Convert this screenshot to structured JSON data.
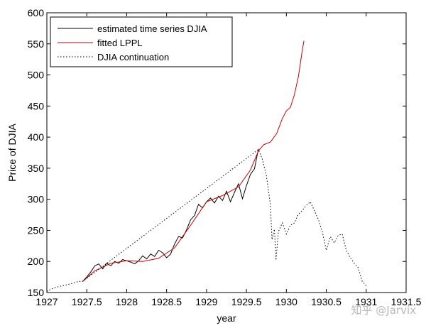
{
  "chart_data": {
    "type": "line",
    "title": "",
    "xlabel": "year",
    "ylabel": "Price of DJIA",
    "xlim": [
      1927,
      1931.5
    ],
    "ylim": [
      150,
      600
    ],
    "xticks": [
      1927,
      1927.5,
      1928,
      1928.5,
      1929,
      1929.5,
      1930,
      1930.5,
      1931,
      1931.5
    ],
    "xtick_labels": [
      "1927",
      "1927.5",
      "1928",
      "1928.5",
      "1929",
      "1929.5",
      "1930",
      "1930.5",
      "1931",
      "1931.5"
    ],
    "yticks": [
      150,
      200,
      250,
      300,
      350,
      400,
      450,
      500,
      550,
      600
    ],
    "ytick_labels": [
      "150",
      "200",
      "250",
      "300",
      "350",
      "400",
      "450",
      "500",
      "550",
      "600"
    ],
    "legend_position": "top-left",
    "series": [
      {
        "name": "estimated time series DJIA",
        "color": "#000000",
        "style": "solid",
        "x": [
          1927.45,
          1927.5,
          1927.55,
          1927.6,
          1927.65,
          1927.7,
          1927.75,
          1927.8,
          1927.85,
          1927.9,
          1927.95,
          1928.0,
          1928.05,
          1928.1,
          1928.15,
          1928.2,
          1928.25,
          1928.3,
          1928.35,
          1928.4,
          1928.45,
          1928.5,
          1928.55,
          1928.6,
          1928.65,
          1928.7,
          1928.75,
          1928.8,
          1928.85,
          1928.9,
          1928.95,
          1929.0,
          1929.05,
          1929.1,
          1929.15,
          1929.2,
          1929.25,
          1929.3,
          1929.35,
          1929.4,
          1929.45,
          1929.5,
          1929.55,
          1929.6,
          1929.65
        ],
        "values": [
          168,
          175,
          183,
          193,
          196,
          188,
          197,
          193,
          200,
          197,
          203,
          201,
          199,
          196,
          201,
          209,
          204,
          212,
          208,
          218,
          214,
          206,
          212,
          228,
          240,
          238,
          251,
          267,
          274,
          292,
          286,
          296,
          302,
          294,
          305,
          298,
          313,
          296,
          311,
          325,
          301,
          322,
          340,
          349,
          381
        ]
      },
      {
        "name": "fitted LPPL",
        "color": "#cc0000",
        "style": "solid",
        "x": [
          1927.45,
          1927.6,
          1927.8,
          1928.0,
          1928.2,
          1928.4,
          1928.6,
          1928.8,
          1929.0,
          1929.2,
          1929.4,
          1929.55,
          1929.65,
          1929.72,
          1929.8,
          1929.88,
          1929.95,
          1930.0,
          1930.05,
          1930.1,
          1930.15,
          1930.2,
          1930.22
        ],
        "values": [
          168,
          185,
          197,
          201,
          200,
          205,
          222,
          258,
          296,
          306,
          320,
          347,
          378,
          388,
          392,
          406,
          430,
          442,
          448,
          468,
          497,
          540,
          555
        ]
      },
      {
        "name": "DJIA continuation",
        "color": "#000000",
        "style": "dotted",
        "x": [
          1927.0,
          1927.1,
          1927.2,
          1927.3,
          1927.4,
          1927.45,
          1929.65,
          1929.7,
          1929.75,
          1929.8,
          1929.82,
          1929.85,
          1929.87,
          1929.9,
          1929.95,
          1930.0,
          1930.05,
          1930.1,
          1930.15,
          1930.2,
          1930.25,
          1930.3,
          1930.35,
          1930.4,
          1930.45,
          1930.5,
          1930.55,
          1930.6,
          1930.65,
          1930.7,
          1930.75,
          1930.8,
          1930.85,
          1930.9,
          1930.95,
          1931.0
        ],
        "values": [
          152,
          158,
          161,
          164,
          168,
          168,
          380,
          364,
          338,
          292,
          235,
          252,
          202,
          248,
          262,
          244,
          258,
          262,
          276,
          282,
          290,
          296,
          282,
          268,
          248,
          218,
          240,
          230,
          242,
          244,
          218,
          206,
          197,
          190,
          168,
          161
        ]
      }
    ]
  },
  "watermark": "知乎 @Jarvix"
}
